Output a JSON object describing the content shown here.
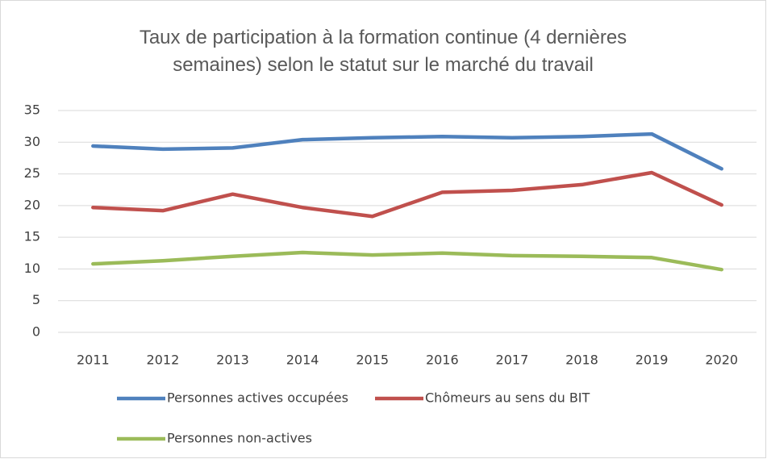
{
  "chart_data": {
    "type": "line",
    "title": "Taux de participation à la formation continue (4 dernières semaines) selon le statut sur le marché du travail",
    "categories": [
      "2011",
      "2012",
      "2013",
      "2014",
      "2015",
      "2016",
      "2017",
      "2018",
      "2019",
      "2020"
    ],
    "series": [
      {
        "name": "Personnes actives occupées",
        "color": "#4f81bd",
        "values": [
          29.4,
          28.9,
          29.1,
          30.4,
          30.7,
          30.9,
          30.7,
          30.9,
          31.3,
          25.8
        ]
      },
      {
        "name": "Chômeurs au sens du BIT",
        "color": "#c0504d",
        "values": [
          19.7,
          19.2,
          21.8,
          19.7,
          18.3,
          22.1,
          22.4,
          23.3,
          25.2,
          20.1
        ]
      },
      {
        "name": "Personnes non-actives",
        "color": "#9bbb59",
        "values": [
          10.8,
          11.3,
          12.0,
          12.6,
          12.2,
          12.5,
          12.1,
          12.0,
          11.8,
          9.9
        ]
      }
    ],
    "ylim": [
      0,
      35
    ],
    "yticks": [
      0,
      5,
      10,
      15,
      20,
      25,
      30,
      35
    ],
    "grid": true,
    "legend": "bottom"
  }
}
